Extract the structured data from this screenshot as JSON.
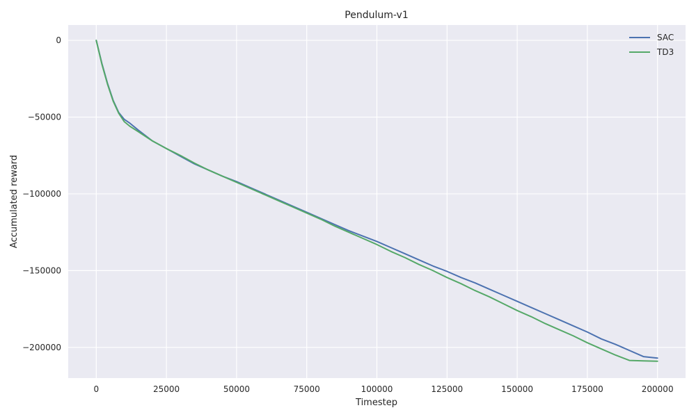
{
  "chart_data": {
    "type": "line",
    "title": "Pendulum-v1",
    "xlabel": "Timestep",
    "ylabel": "Accumulated reward",
    "xlim": [
      -10000,
      210000
    ],
    "ylim": [
      -220000,
      10000
    ],
    "xticks": [
      0,
      25000,
      50000,
      75000,
      100000,
      125000,
      150000,
      175000,
      200000
    ],
    "yticks": [
      0,
      -50000,
      -100000,
      -150000,
      -200000
    ],
    "grid": true,
    "legend_position": "top-right",
    "background": "#eaeaf2",
    "series": [
      {
        "name": "SAC",
        "color": "#4c72b0",
        "x": [
          0,
          2000,
          4000,
          6000,
          8000,
          10000,
          12000,
          15000,
          20000,
          25000,
          30000,
          35000,
          40000,
          45000,
          50000,
          55000,
          60000,
          65000,
          70000,
          75000,
          80000,
          85000,
          90000,
          95000,
          100000,
          105000,
          110000,
          115000,
          120000,
          125000,
          130000,
          135000,
          140000,
          145000,
          150000,
          155000,
          160000,
          165000,
          170000,
          175000,
          180000,
          185000,
          190000,
          195000,
          200000
        ],
        "y": [
          0,
          -15000,
          -28000,
          -39000,
          -47000,
          -51500,
          -54000,
          -58500,
          -65500,
          -70500,
          -75500,
          -80500,
          -84500,
          -88500,
          -92000,
          -96000,
          -100000,
          -104000,
          -108000,
          -112000,
          -116000,
          -120000,
          -124000,
          -127500,
          -131000,
          -135000,
          -139000,
          -143000,
          -147000,
          -150500,
          -154500,
          -158000,
          -162000,
          -166000,
          -170000,
          -174000,
          -178000,
          -182000,
          -186000,
          -190000,
          -194500,
          -198000,
          -202000,
          -206000,
          -207000
        ]
      },
      {
        "name": "TD3",
        "color": "#55a868",
        "x": [
          0,
          2000,
          4000,
          6000,
          8000,
          10000,
          12000,
          15000,
          20000,
          25000,
          30000,
          35000,
          40000,
          45000,
          50000,
          55000,
          60000,
          65000,
          70000,
          75000,
          80000,
          85000,
          90000,
          95000,
          100000,
          105000,
          110000,
          115000,
          120000,
          125000,
          130000,
          135000,
          140000,
          145000,
          150000,
          155000,
          160000,
          165000,
          170000,
          175000,
          180000,
          185000,
          190000,
          195000,
          200000
        ],
        "y": [
          0,
          -15500,
          -28500,
          -39500,
          -47500,
          -53000,
          -56000,
          -59500,
          -65500,
          -70500,
          -75000,
          -80000,
          -84500,
          -88500,
          -92500,
          -96500,
          -100500,
          -104500,
          -108500,
          -112500,
          -116500,
          -121000,
          -125000,
          -129000,
          -133000,
          -137500,
          -141500,
          -146000,
          -150000,
          -154500,
          -158500,
          -163000,
          -167000,
          -171500,
          -176000,
          -180000,
          -184500,
          -188500,
          -192500,
          -197000,
          -201000,
          -205000,
          -208500,
          -208800,
          -209000
        ]
      }
    ]
  }
}
